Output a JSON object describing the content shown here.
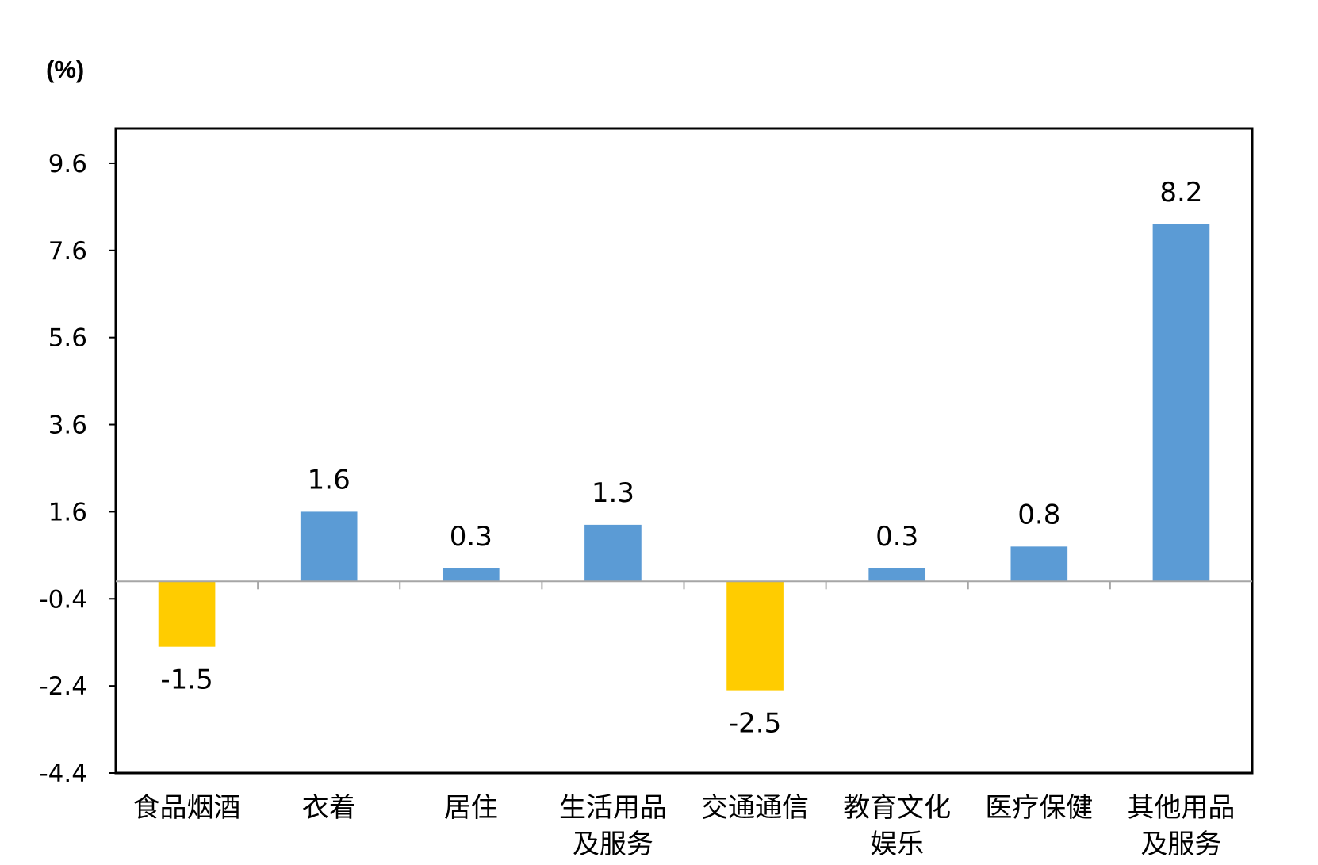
{
  "chart_data": {
    "type": "bar",
    "unit_label": "(%)",
    "categories": [
      [
        "食品烟酒"
      ],
      [
        "衣着"
      ],
      [
        "居住"
      ],
      [
        "生活用品",
        "及服务"
      ],
      [
        "交通通信"
      ],
      [
        "教育文化",
        "娱乐"
      ],
      [
        "医疗保健"
      ],
      [
        "其他用品",
        "及服务"
      ]
    ],
    "values": [
      -1.5,
      1.6,
      0.3,
      1.3,
      -2.5,
      0.3,
      0.8,
      8.2
    ],
    "value_labels": [
      "-1.5",
      "1.6",
      "0.3",
      "1.3",
      "-2.5",
      "0.3",
      "0.8",
      "8.2"
    ],
    "yticks": [
      "9.6",
      "7.6",
      "5.6",
      "3.6",
      "1.6",
      "-0.4",
      "-2.4",
      "-4.4"
    ],
    "ylim": [
      -4.4,
      10.4
    ],
    "grid": false,
    "legend": "none",
    "colors": {
      "positive": "#5b9bd5",
      "negative": "#ffcc00",
      "axis": "#000000",
      "zero_line": "#a6a6a6"
    }
  }
}
